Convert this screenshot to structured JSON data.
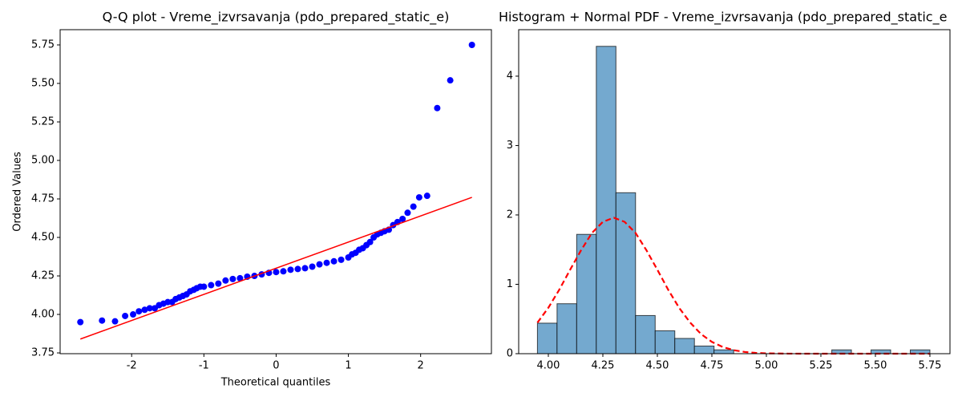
{
  "chart_data": [
    {
      "type": "scatter",
      "title": "Q-Q plot - Vreme_izvrsavanja (pdo_prepared_static_e)",
      "xlabel": "Theoretical quantiles",
      "ylabel": "Ordered Values",
      "xlim": [
        -2.99,
        2.98
      ],
      "ylim": [
        3.745,
        5.849
      ],
      "xticks": [
        -2,
        -1,
        0,
        1,
        2
      ],
      "yticks": [
        3.75,
        {
          "value": 4,
          "label": "4.00"
        },
        4.25,
        {
          "value": 4.5,
          "label": "4.50"
        },
        4.75,
        {
          "value": 5,
          "label": "5.00"
        },
        5.25,
        {
          "value": 5.5,
          "label": "5.50"
        },
        5.75
      ],
      "series": [
        {
          "type": "scatter",
          "color": "#0000ff",
          "x": [
            -2.71,
            -2.41,
            -2.23,
            -2.09,
            -1.98,
            -1.9,
            -1.82,
            -1.75,
            -1.68,
            -1.62,
            -1.56,
            -1.5,
            -1.44,
            -1.39,
            -1.34,
            -1.29,
            -1.24,
            -1.19,
            -1.14,
            -1.1,
            -1.05,
            -1.0,
            -0.9,
            -0.8,
            -0.7,
            -0.6,
            -0.5,
            -0.4,
            -0.3,
            -0.2,
            -0.1,
            0,
            0.1,
            0.2,
            0.3,
            0.4,
            0.5,
            0.6,
            0.7,
            0.8,
            0.9,
            1.0,
            1.05,
            1.1,
            1.15,
            1.2,
            1.25,
            1.3,
            1.35,
            1.4,
            1.45,
            1.5,
            1.56,
            1.62,
            1.68,
            1.75,
            1.82,
            1.9,
            1.98,
            2.09,
            2.23,
            2.41,
            2.71
          ],
          "values": [
            3.95,
            3.96,
            3.955,
            3.99,
            4.0,
            4.02,
            4.03,
            4.04,
            4.04,
            4.06,
            4.07,
            4.08,
            4.08,
            4.1,
            4.11,
            4.12,
            4.13,
            4.15,
            4.16,
            4.17,
            4.18,
            4.18,
            4.19,
            4.2,
            4.22,
            4.23,
            4.235,
            4.245,
            4.25,
            4.26,
            4.27,
            4.275,
            4.28,
            4.29,
            4.295,
            4.3,
            4.31,
            4.325,
            4.335,
            4.345,
            4.355,
            4.37,
            4.39,
            4.4,
            4.42,
            4.43,
            4.45,
            4.47,
            4.5,
            4.52,
            4.53,
            4.54,
            4.55,
            4.58,
            4.6,
            4.62,
            4.66,
            4.7,
            4.76,
            4.77,
            5.34,
            5.52,
            5.75
          ]
        },
        {
          "type": "line",
          "color": "#ff0000",
          "x": [
            -2.71,
            2.71
          ],
          "values": [
            3.84,
            4.76
          ]
        }
      ]
    },
    {
      "type": "histogram",
      "title": "Histogram + Normal PDF - Vreme_izvrsavanja (pdo_prepared_static_e",
      "xlim": [
        3.864,
        5.842
      ],
      "ylim": [
        0,
        4.67
      ],
      "xticks": [
        {
          "value": 4,
          "label": "4.00"
        },
        4.25,
        {
          "value": 4.5,
          "label": "4.50"
        },
        4.75,
        {
          "value": 5,
          "label": "5.00"
        },
        5.25,
        {
          "value": 5.5,
          "label": "5.50"
        },
        5.75
      ],
      "yticks": [
        0,
        1,
        2,
        3,
        4
      ],
      "color": "#74a9cf",
      "edgecolor": "#000000",
      "bins": [
        3.95,
        4.04,
        4.13,
        4.22,
        4.31,
        4.4,
        4.49,
        4.58,
        4.67,
        4.76,
        4.85,
        4.94,
        5.03,
        5.12,
        5.21,
        5.3,
        5.39,
        5.48,
        5.57,
        5.66,
        5.75
      ],
      "values": [
        0.44,
        0.72,
        1.72,
        4.43,
        2.32,
        0.55,
        0.33,
        0.22,
        0.11,
        0.055,
        0,
        0,
        0,
        0,
        0,
        0.055,
        0,
        0.055,
        0,
        0.055
      ],
      "series": [
        {
          "type": "line",
          "color": "#ff0000",
          "dashed": true,
          "x": [
            3.95,
            4.0,
            4.05,
            4.1,
            4.15,
            4.2,
            4.25,
            4.3,
            4.35,
            4.4,
            4.45,
            4.5,
            4.55,
            4.6,
            4.65,
            4.7,
            4.75,
            4.8,
            4.85,
            4.9,
            4.95,
            5.0,
            5.1,
            5.2,
            5.3,
            5.4,
            5.5,
            5.6,
            5.7,
            5.75
          ],
          "values": [
            0.447,
            0.662,
            0.921,
            1.21,
            1.49,
            1.74,
            1.9,
            1.96,
            1.9,
            1.74,
            1.49,
            1.21,
            0.92,
            0.66,
            0.45,
            0.284,
            0.17,
            0.096,
            0.051,
            0.025,
            0.012,
            0.005,
            0.0009,
            0.0001,
            0,
            0,
            0,
            0,
            0,
            0
          ]
        }
      ]
    }
  ]
}
